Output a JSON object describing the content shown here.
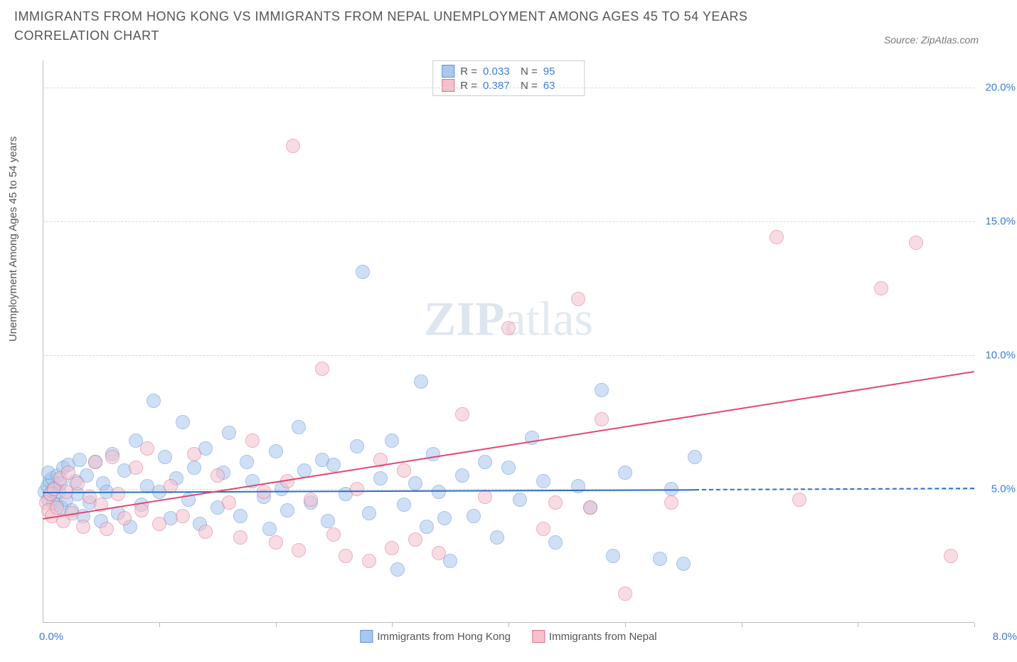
{
  "title": "IMMIGRANTS FROM HONG KONG VS IMMIGRANTS FROM NEPAL UNEMPLOYMENT AMONG AGES 45 TO 54 YEARS CORRELATION CHART",
  "source": "Source: ZipAtlas.com",
  "ylabel": "Unemployment Among Ages 45 to 54 years",
  "watermark_a": "ZIP",
  "watermark_b": "atlas",
  "chart": {
    "type": "scatter",
    "x_min": 0.0,
    "x_max": 8.0,
    "y_min": 0.0,
    "y_max": 21.0,
    "x_tick_min_label": "0.0%",
    "x_tick_max_label": "8.0%",
    "x_tick_positions": [
      1,
      2,
      3,
      4,
      5,
      6,
      7,
      8
    ],
    "y_ticks": [
      {
        "v": 5.0,
        "label": "5.0%"
      },
      {
        "v": 10.0,
        "label": "10.0%"
      },
      {
        "v": 15.0,
        "label": "15.0%"
      },
      {
        "v": 20.0,
        "label": "20.0%"
      }
    ],
    "grid_color": "#d8d8d8",
    "axis_color": "#bbbbbb",
    "background_color": "#ffffff",
    "marker_radius": 9,
    "marker_opacity": 0.55,
    "series": [
      {
        "key": "hk",
        "label": "Immigrants from Hong Kong",
        "fill": "#a9c8ef",
        "stroke": "#5f93d4",
        "line_color": "#2f6fc6",
        "R": "0.033",
        "N": "95",
        "trend": {
          "x1": 0.0,
          "y1": 4.9,
          "x2": 5.6,
          "y2": 5.0,
          "x2_dash": 8.0,
          "y2_dash": 5.05
        },
        "points": [
          [
            0.02,
            4.9
          ],
          [
            0.04,
            5.1
          ],
          [
            0.05,
            4.6
          ],
          [
            0.06,
            5.3
          ],
          [
            0.07,
            4.8
          ],
          [
            0.08,
            5.4
          ],
          [
            0.09,
            4.5
          ],
          [
            0.05,
            5.6
          ],
          [
            0.1,
            5.0
          ],
          [
            0.12,
            4.4
          ],
          [
            0.13,
            5.5
          ],
          [
            0.14,
            4.9
          ],
          [
            0.15,
            5.2
          ],
          [
            0.16,
            4.3
          ],
          [
            0.18,
            5.8
          ],
          [
            0.2,
            4.6
          ],
          [
            0.22,
            5.9
          ],
          [
            0.25,
            4.2
          ],
          [
            0.28,
            5.3
          ],
          [
            0.3,
            4.8
          ],
          [
            0.32,
            6.1
          ],
          [
            0.35,
            4.0
          ],
          [
            0.38,
            5.5
          ],
          [
            0.4,
            4.5
          ],
          [
            0.45,
            6.0
          ],
          [
            0.5,
            3.8
          ],
          [
            0.52,
            5.2
          ],
          [
            0.55,
            4.9
          ],
          [
            0.6,
            6.3
          ],
          [
            0.65,
            4.1
          ],
          [
            0.7,
            5.7
          ],
          [
            0.75,
            3.6
          ],
          [
            0.8,
            6.8
          ],
          [
            0.85,
            4.4
          ],
          [
            0.9,
            5.1
          ],
          [
            0.95,
            8.3
          ],
          [
            1.0,
            4.9
          ],
          [
            1.05,
            6.2
          ],
          [
            1.1,
            3.9
          ],
          [
            1.15,
            5.4
          ],
          [
            1.2,
            7.5
          ],
          [
            1.25,
            4.6
          ],
          [
            1.3,
            5.8
          ],
          [
            1.35,
            3.7
          ],
          [
            1.4,
            6.5
          ],
          [
            1.5,
            4.3
          ],
          [
            1.55,
            5.6
          ],
          [
            1.6,
            7.1
          ],
          [
            1.7,
            4.0
          ],
          [
            1.75,
            6.0
          ],
          [
            1.8,
            5.3
          ],
          [
            1.9,
            4.7
          ],
          [
            1.95,
            3.5
          ],
          [
            2.0,
            6.4
          ],
          [
            2.05,
            5.0
          ],
          [
            2.1,
            4.2
          ],
          [
            2.2,
            7.3
          ],
          [
            2.25,
            5.7
          ],
          [
            2.3,
            4.5
          ],
          [
            2.4,
            6.1
          ],
          [
            2.45,
            3.8
          ],
          [
            2.5,
            5.9
          ],
          [
            2.6,
            4.8
          ],
          [
            2.7,
            6.6
          ],
          [
            2.75,
            13.1
          ],
          [
            2.8,
            4.1
          ],
          [
            2.9,
            5.4
          ],
          [
            3.0,
            6.8
          ],
          [
            3.05,
            2.0
          ],
          [
            3.1,
            4.4
          ],
          [
            3.2,
            5.2
          ],
          [
            3.25,
            9.0
          ],
          [
            3.3,
            3.6
          ],
          [
            3.35,
            6.3
          ],
          [
            3.4,
            4.9
          ],
          [
            3.5,
            2.3
          ],
          [
            3.6,
            5.5
          ],
          [
            3.7,
            4.0
          ],
          [
            3.8,
            6.0
          ],
          [
            3.9,
            3.2
          ],
          [
            4.0,
            5.8
          ],
          [
            4.1,
            4.6
          ],
          [
            4.2,
            6.9
          ],
          [
            4.4,
            3.0
          ],
          [
            4.6,
            5.1
          ],
          [
            4.7,
            4.3
          ],
          [
            4.8,
            8.7
          ],
          [
            4.9,
            2.5
          ],
          [
            5.0,
            5.6
          ],
          [
            5.3,
            2.4
          ],
          [
            5.4,
            5.0
          ],
          [
            5.6,
            6.2
          ],
          [
            5.5,
            2.2
          ],
          [
            4.3,
            5.3
          ],
          [
            3.45,
            3.9
          ]
        ]
      },
      {
        "key": "np",
        "label": "Immigrants from Nepal",
        "fill": "#f4c1cd",
        "stroke": "#e06f8b",
        "line_color": "#e1486f",
        "R": "0.387",
        "N": "63",
        "trend": {
          "x1": 0.0,
          "y1": 3.9,
          "x2": 8.0,
          "y2": 9.4
        },
        "points": [
          [
            0.03,
            4.5
          ],
          [
            0.05,
            4.2
          ],
          [
            0.07,
            4.8
          ],
          [
            0.08,
            4.0
          ],
          [
            0.1,
            5.0
          ],
          [
            0.12,
            4.3
          ],
          [
            0.15,
            5.4
          ],
          [
            0.18,
            3.8
          ],
          [
            0.2,
            4.9
          ],
          [
            0.22,
            5.6
          ],
          [
            0.25,
            4.1
          ],
          [
            0.3,
            5.2
          ],
          [
            0.35,
            3.6
          ],
          [
            0.4,
            4.7
          ],
          [
            0.45,
            6.0
          ],
          [
            0.5,
            4.4
          ],
          [
            0.55,
            3.5
          ],
          [
            0.6,
            6.2
          ],
          [
            0.65,
            4.8
          ],
          [
            0.7,
            3.9
          ],
          [
            0.8,
            5.8
          ],
          [
            0.85,
            4.2
          ],
          [
            0.9,
            6.5
          ],
          [
            1.0,
            3.7
          ],
          [
            1.1,
            5.1
          ],
          [
            1.2,
            4.0
          ],
          [
            1.3,
            6.3
          ],
          [
            1.4,
            3.4
          ],
          [
            1.5,
            5.5
          ],
          [
            1.6,
            4.5
          ],
          [
            1.7,
            3.2
          ],
          [
            1.8,
            6.8
          ],
          [
            1.9,
            4.9
          ],
          [
            2.0,
            3.0
          ],
          [
            2.1,
            5.3
          ],
          [
            2.15,
            17.8
          ],
          [
            2.2,
            2.7
          ],
          [
            2.3,
            4.6
          ],
          [
            2.4,
            9.5
          ],
          [
            2.5,
            3.3
          ],
          [
            2.6,
            2.5
          ],
          [
            2.7,
            5.0
          ],
          [
            2.8,
            2.3
          ],
          [
            2.9,
            6.1
          ],
          [
            3.0,
            2.8
          ],
          [
            3.1,
            5.7
          ],
          [
            3.2,
            3.1
          ],
          [
            3.4,
            2.6
          ],
          [
            3.6,
            7.8
          ],
          [
            3.8,
            4.7
          ],
          [
            4.0,
            11.0
          ],
          [
            4.3,
            3.5
          ],
          [
            4.4,
            4.5
          ],
          [
            4.6,
            12.1
          ],
          [
            4.7,
            4.3
          ],
          [
            4.8,
            7.6
          ],
          [
            5.0,
            1.1
          ],
          [
            5.4,
            4.5
          ],
          [
            6.3,
            14.4
          ],
          [
            6.5,
            4.6
          ],
          [
            7.2,
            12.5
          ],
          [
            7.5,
            14.2
          ],
          [
            7.8,
            2.5
          ]
        ]
      }
    ]
  },
  "stats_labels": {
    "R": "R =",
    "N": "N ="
  }
}
